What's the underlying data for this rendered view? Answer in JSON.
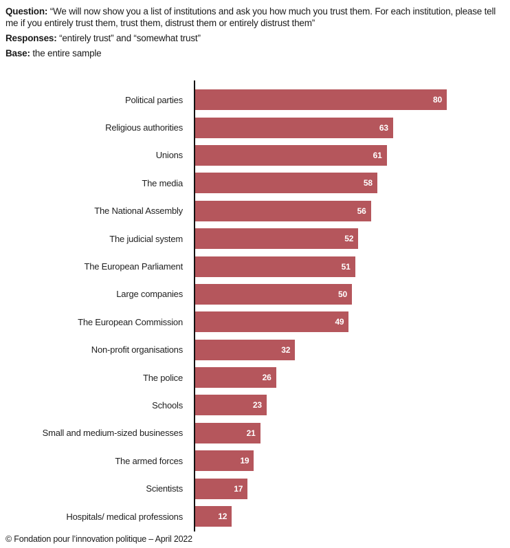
{
  "header": {
    "question_label": "Question:",
    "question_text": " “We will now show you a list of institutions and ask you how much you trust them. For each institution, please tell me if you entirely trust them, trust them, distrust them or entirely distrust them”",
    "responses_label": "Responses:",
    "responses_text": " “entirely trust” and “somewhat trust”",
    "base_label": "Base:",
    "base_text": " the entire sample"
  },
  "chart_data": {
    "type": "bar",
    "orientation": "horizontal",
    "title": "",
    "xlabel": "",
    "ylabel": "",
    "xlim": [
      0,
      100
    ],
    "grid": false,
    "legend": false,
    "bar_color": "#b5565c",
    "value_label_color": "#ffffff",
    "categories": [
      "Political parties",
      "Religious authorities",
      "Unions",
      "The media",
      "The National Assembly",
      "The judicial system",
      "The European Parliament",
      "Large companies",
      "The European Commission",
      "Non-profit organisations",
      "The police",
      "Schools",
      "Small and medium-sized businesses",
      "The armed forces",
      "Scientists",
      "Hospitals/ medical professions"
    ],
    "values": [
      80,
      63,
      61,
      58,
      56,
      52,
      51,
      50,
      49,
      32,
      26,
      23,
      21,
      19,
      17,
      12
    ]
  },
  "footer": {
    "credit": "© Fondation pour l’innovation politique – April 2022"
  }
}
